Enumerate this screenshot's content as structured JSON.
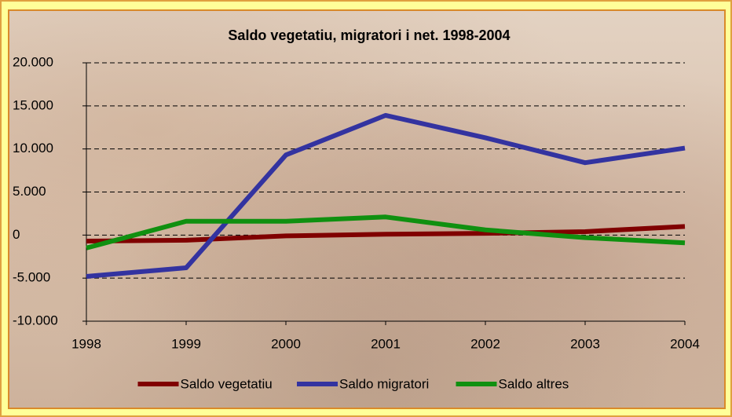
{
  "chart_data": {
    "type": "line",
    "title": "Saldo vegetatiu, migratori i net. 1998-2004",
    "categories": [
      "1998",
      "1999",
      "2000",
      "2001",
      "2002",
      "2003",
      "2004"
    ],
    "series": [
      {
        "name": "Saldo vegetatiu",
        "color": "#800000",
        "values": [
          -700,
          -600,
          -100,
          100,
          200,
          400,
          1000
        ]
      },
      {
        "name": "Saldo migratori",
        "color": "#3333a0",
        "values": [
          -4800,
          -3800,
          9300,
          13900,
          11300,
          8400,
          10100
        ]
      },
      {
        "name": "Saldo altres",
        "color": "#109010",
        "values": [
          -1500,
          1600,
          1600,
          2100,
          600,
          -300,
          -900
        ]
      }
    ],
    "ylim": [
      -10000,
      20000
    ],
    "yticks": [
      {
        "value": -10000,
        "label": "-10.000"
      },
      {
        "value": -5000,
        "label": "-5.000"
      },
      0,
      {
        "value": 5000,
        "label": "5.000"
      },
      {
        "value": 10000,
        "label": "10.000"
      },
      {
        "value": 15000,
        "label": "15.000"
      },
      {
        "value": 20000,
        "label": "20.000"
      }
    ],
    "grid": true
  }
}
